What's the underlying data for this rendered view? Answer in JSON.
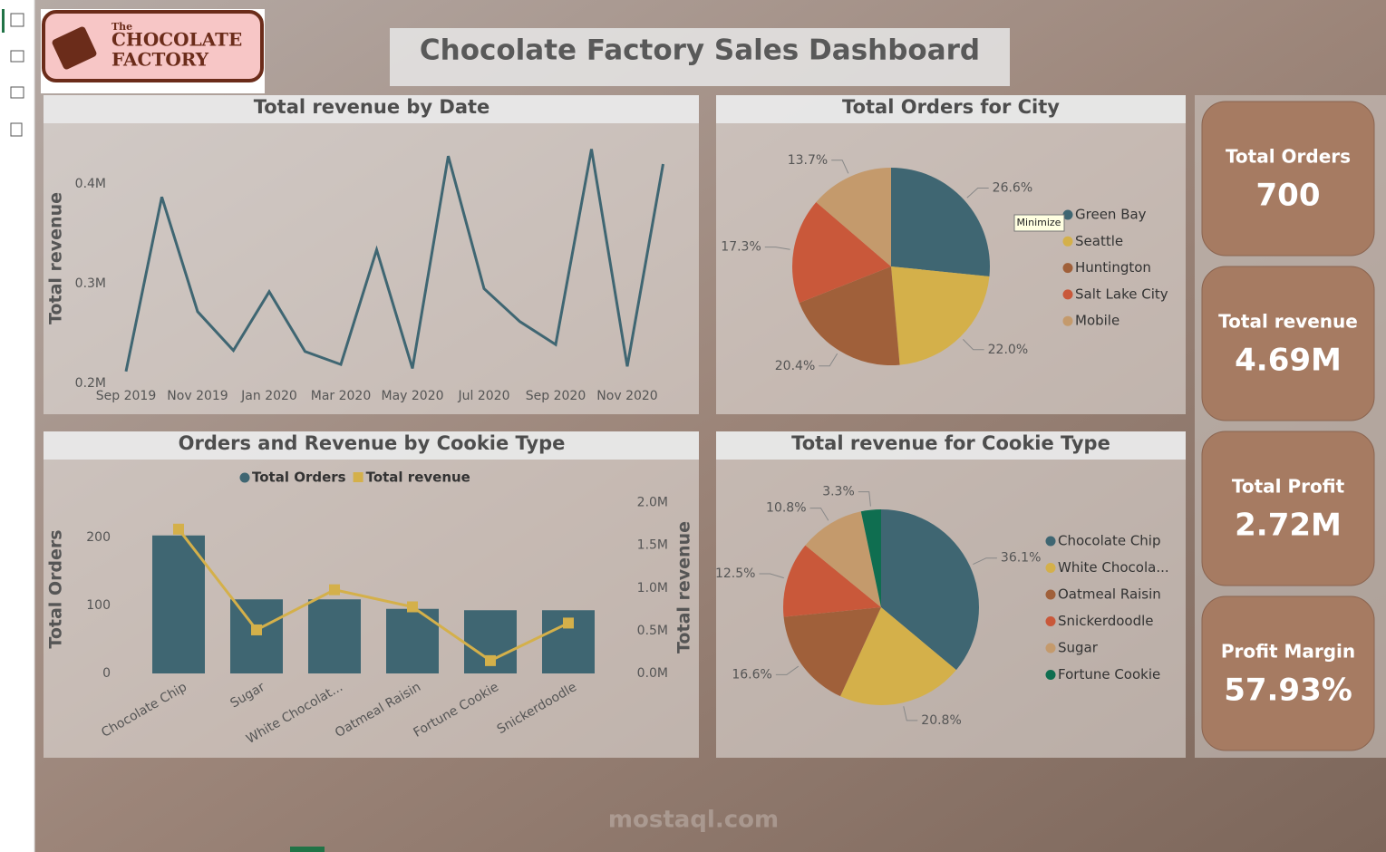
{
  "logo": {
    "small": "The",
    "line1": "CHOCOLATE",
    "line2": "FACTORY"
  },
  "header": {
    "title": "Chocolate Factory Sales Dashboard"
  },
  "tooltip": "Minimize",
  "watermark": "mostaql.com",
  "cards": [
    {
      "label": "Total Orders",
      "value": "700"
    },
    {
      "label": "Total revenue",
      "value": "4.69M"
    },
    {
      "label": "Total Profit",
      "value": "2.72M"
    },
    {
      "label": "Profit Margin",
      "value": "57.93%"
    }
  ],
  "chart_data": [
    {
      "type": "line",
      "title": "Total revenue by Date",
      "y_label": "Total revenue",
      "color": "#3f6672",
      "grid": false,
      "categories": [
        "Sep 2019",
        null,
        "Nov 2019",
        null,
        "Jan 2020",
        null,
        "Mar 2020",
        null,
        "May 2020",
        null,
        "Jul 2020",
        null,
        "Sep 2020",
        null,
        "Nov 2020",
        null
      ],
      "values": [
        212000,
        387000,
        272000,
        233000,
        292000,
        232000,
        219000,
        334000,
        215000,
        428000,
        295000,
        262000,
        239000,
        435000,
        217000,
        420000
      ],
      "ylim": [
        200000,
        440000
      ],
      "yticks": [
        {
          "value": 200000,
          "label": "0.2M"
        },
        {
          "value": 300000,
          "label": "0.3M"
        },
        {
          "value": 400000,
          "label": "0.4M"
        }
      ]
    },
    {
      "type": "pie",
      "title": "Total Orders for City",
      "categories": [
        "Green Bay",
        "Seattle",
        "Huntington",
        "Salt Lake City",
        "Mobile"
      ],
      "values": [
        26.6,
        22.0,
        20.4,
        17.3,
        13.7
      ],
      "value_labels": [
        "26.6%",
        "22.0%",
        "20.4%",
        "17.3%",
        "13.7%"
      ],
      "colors": [
        "#3f6672",
        "#d4b04a",
        "#a0603a",
        "#c9583a",
        "#c49a6c"
      ]
    },
    {
      "type": "combo",
      "title": "Orders and Revenue by Cookie Type",
      "y_label": "Total Orders",
      "y2_label": "Total revenue",
      "categories": [
        "Chocolate Chip",
        "Sugar",
        "White Chocolat...",
        "Oatmeal Raisin",
        "Fortune Cookie",
        "Snickerdoodle"
      ],
      "series": [
        {
          "name": "Total Orders",
          "type": "bar",
          "color": "#3f6672",
          "values": [
            203,
            109,
            109,
            95,
            93,
            93
          ]
        },
        {
          "name": "Total revenue",
          "type": "line",
          "axis": "y2",
          "color": "#d4b04a",
          "values": [
            1690000,
            510000,
            980000,
            780000,
            150000,
            590000
          ]
        }
      ],
      "ylim": [
        0,
        260
      ],
      "yticks": [
        0,
        100,
        200
      ],
      "y2lim": [
        0,
        2070000
      ],
      "y2ticks": [
        {
          "value": 0,
          "label": "0.0M"
        },
        {
          "value": 500000,
          "label": "0.5M"
        },
        {
          "value": 1000000,
          "label": "1.0M"
        },
        {
          "value": 1500000,
          "label": "1.5M"
        },
        {
          "value": 2000000,
          "label": "2.0M"
        }
      ]
    },
    {
      "type": "pie",
      "title": "Total revenue for Cookie Type",
      "categories": [
        "Chocolate Chip",
        "White Chocola...",
        "Oatmeal Raisin",
        "Snickerdoodle",
        "Sugar",
        "Fortune Cookie"
      ],
      "values": [
        36.1,
        20.8,
        16.6,
        12.5,
        10.8,
        3.3
      ],
      "value_labels": [
        "36.1%",
        "20.8%",
        "16.6%",
        "12.5%",
        "10.8%",
        "3.3%"
      ],
      "colors": [
        "#3f6672",
        "#d4b04a",
        "#a0603a",
        "#c9583a",
        "#c49a6c",
        "#0f6e50"
      ]
    }
  ]
}
